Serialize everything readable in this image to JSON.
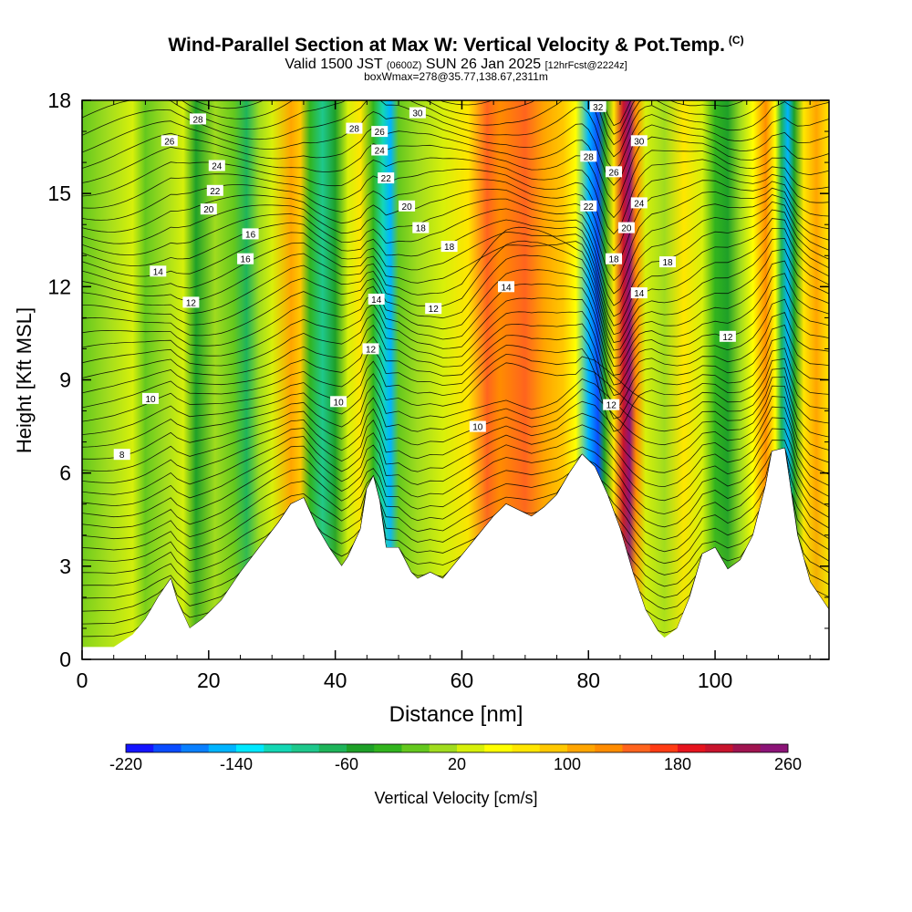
{
  "title": {
    "main": "Wind-Parallel Section at Max W: Vertical Velocity & Pot.Temp.",
    "copyright": "(C)",
    "valid_prefix": "Valid 1500 JST",
    "valid_z": "(0600Z)",
    "valid_date": "SUN 26 Jan 2025",
    "forecast": "[12hrFcst@2224z]",
    "box_info": "boxWmax=278@35.77,138.67,2311m"
  },
  "chart_data": {
    "type": "heatmap",
    "xlabel": "Distance [nm]",
    "ylabel": "Height [Kft MSL]",
    "xlim": [
      0,
      118
    ],
    "ylim": [
      0,
      18
    ],
    "x_ticks": [
      "0",
      "20",
      "40",
      "60",
      "80",
      "100"
    ],
    "y_ticks": [
      "0",
      "3",
      "6",
      "9",
      "12",
      "15",
      "18"
    ],
    "colorbar": {
      "label": "Vertical Velocity [cm/s]",
      "min": -220,
      "max": 260,
      "step": 20,
      "tick_labels": [
        "-220",
        "-140",
        "-60",
        "20",
        "100",
        "180",
        "260"
      ],
      "colors": [
        "#1414ff",
        "#0a4cff",
        "#0a80ff",
        "#00b4ff",
        "#00e8ff",
        "#14d7b4",
        "#1ec88c",
        "#1eb45a",
        "#1ea028",
        "#32b41e",
        "#64c81e",
        "#a0dc1e",
        "#d7f00a",
        "#ffff00",
        "#ffe600",
        "#ffc800",
        "#ffa500",
        "#ff8c00",
        "#ff641e",
        "#ff3c14",
        "#e6141e",
        "#c8142d",
        "#a01450",
        "#8c1478"
      ]
    },
    "terrain_kft": [
      [
        0,
        0.4
      ],
      [
        5,
        0.4
      ],
      [
        8,
        0.8
      ],
      [
        10,
        1.3
      ],
      [
        12,
        2
      ],
      [
        14,
        2.6
      ],
      [
        15,
        1.9
      ],
      [
        17,
        1.0
      ],
      [
        19,
        1.3
      ],
      [
        22,
        1.9
      ],
      [
        25,
        2.8
      ],
      [
        28,
        3.6
      ],
      [
        31,
        4.4
      ],
      [
        33,
        5.0
      ],
      [
        35,
        5.2
      ],
      [
        37,
        4.3
      ],
      [
        39,
        3.6
      ],
      [
        41,
        3.0
      ],
      [
        42,
        3.3
      ],
      [
        44,
        4.2
      ],
      [
        45,
        5.5
      ],
      [
        46,
        5.9
      ],
      [
        47,
        5.1
      ],
      [
        48,
        3.6
      ],
      [
        50,
        3.6
      ],
      [
        52,
        2.8
      ],
      [
        53,
        2.6
      ],
      [
        55,
        2.8
      ],
      [
        57,
        2.6
      ],
      [
        59,
        3.1
      ],
      [
        61,
        3.6
      ],
      [
        63,
        4.1
      ],
      [
        65,
        4.6
      ],
      [
        67,
        5.0
      ],
      [
        69,
        4.8
      ],
      [
        71,
        4.6
      ],
      [
        73,
        4.9
      ],
      [
        75,
        5.3
      ],
      [
        77,
        6.0
      ],
      [
        79,
        6.6
      ],
      [
        81,
        6.2
      ],
      [
        83,
        5.3
      ],
      [
        85,
        4.2
      ],
      [
        87,
        2.8
      ],
      [
        89,
        1.6
      ],
      [
        91,
        0.9
      ],
      [
        92,
        0.7
      ],
      [
        94,
        1.0
      ],
      [
        96,
        2.0
      ],
      [
        98,
        3.4
      ],
      [
        100,
        3.6
      ],
      [
        102,
        2.9
      ],
      [
        104,
        3.2
      ],
      [
        106,
        4.0
      ],
      [
        108,
        5.6
      ],
      [
        109,
        6.7
      ],
      [
        111,
        6.8
      ],
      [
        113,
        4.0
      ],
      [
        115,
        2.5
      ],
      [
        117,
        1.9
      ],
      [
        118,
        1.6
      ]
    ],
    "vv_bands": [
      {
        "x": 0,
        "w": -10
      },
      {
        "x": 4,
        "w": 0
      },
      {
        "x": 8,
        "w": 20
      },
      {
        "x": 10,
        "w": -20
      },
      {
        "x": 13,
        "w": 10
      },
      {
        "x": 16,
        "w": 30
      },
      {
        "x": 18,
        "w": -60
      },
      {
        "x": 21,
        "w": 10
      },
      {
        "x": 24,
        "w": -20
      },
      {
        "x": 26,
        "w": -80
      },
      {
        "x": 28,
        "w": 0
      },
      {
        "x": 30,
        "w": 30
      },
      {
        "x": 33,
        "w": 110
      },
      {
        "x": 34.5,
        "w": 80
      },
      {
        "x": 36,
        "w": -40
      },
      {
        "x": 38,
        "w": -90
      },
      {
        "x": 40,
        "w": -50
      },
      {
        "x": 42,
        "w": 20
      },
      {
        "x": 44,
        "w": 60
      },
      {
        "x": 46,
        "w": -40
      },
      {
        "x": 47.5,
        "w": -120
      },
      {
        "x": 48.7,
        "w": -150
      },
      {
        "x": 50,
        "w": -10
      },
      {
        "x": 53,
        "w": 10
      },
      {
        "x": 57,
        "w": 30
      },
      {
        "x": 61,
        "w": 60
      },
      {
        "x": 64,
        "w": 150
      },
      {
        "x": 66,
        "w": 120
      },
      {
        "x": 70,
        "w": 140
      },
      {
        "x": 73,
        "w": 110
      },
      {
        "x": 76,
        "w": 80
      },
      {
        "x": 78,
        "w": 40
      },
      {
        "x": 80,
        "w": -160
      },
      {
        "x": 81.5,
        "w": -200
      },
      {
        "x": 82.5,
        "w": -60
      },
      {
        "x": 84,
        "w": 60
      },
      {
        "x": 85.5,
        "w": 200
      },
      {
        "x": 86.5,
        "w": 240
      },
      {
        "x": 87.5,
        "w": 120
      },
      {
        "x": 89,
        "w": 30
      },
      {
        "x": 92,
        "w": 10
      },
      {
        "x": 95,
        "w": 60
      },
      {
        "x": 98,
        "w": 20
      },
      {
        "x": 100,
        "w": -40
      },
      {
        "x": 102,
        "w": -60
      },
      {
        "x": 104,
        "w": 10
      },
      {
        "x": 106,
        "w": 50
      },
      {
        "x": 108,
        "w": 130
      },
      {
        "x": 109.5,
        "w": 40
      },
      {
        "x": 110.5,
        "w": -80
      },
      {
        "x": 111.5,
        "w": -150
      },
      {
        "x": 112.5,
        "w": -60
      },
      {
        "x": 114,
        "w": 60
      },
      {
        "x": 116,
        "w": 100
      },
      {
        "x": 118,
        "w": 60
      }
    ],
    "contour_labels": [
      {
        "text": "8",
        "x": 6.3,
        "y": 6.6
      },
      {
        "text": "10",
        "x": 10.8,
        "y": 8.4
      },
      {
        "text": "12",
        "x": 17.2,
        "y": 11.5
      },
      {
        "text": "14",
        "x": 12,
        "y": 12.5
      },
      {
        "text": "16",
        "x": 25.8,
        "y": 12.9
      },
      {
        "text": "16",
        "x": 26.6,
        "y": 13.7
      },
      {
        "text": "20",
        "x": 20,
        "y": 14.5
      },
      {
        "text": "22",
        "x": 21,
        "y": 15.1
      },
      {
        "text": "24",
        "x": 21.3,
        "y": 15.9
      },
      {
        "text": "26",
        "x": 13.8,
        "y": 16.7
      },
      {
        "text": "28",
        "x": 18.3,
        "y": 17.4
      },
      {
        "text": "28",
        "x": 43,
        "y": 17.1
      },
      {
        "text": "26",
        "x": 47,
        "y": 17.0
      },
      {
        "text": "24",
        "x": 47,
        "y": 16.4
      },
      {
        "text": "22",
        "x": 48,
        "y": 15.5
      },
      {
        "text": "30",
        "x": 53,
        "y": 17.6
      },
      {
        "text": "20",
        "x": 51.3,
        "y": 14.6
      },
      {
        "text": "18",
        "x": 53.5,
        "y": 13.9
      },
      {
        "text": "18",
        "x": 58,
        "y": 13.3
      },
      {
        "text": "14",
        "x": 46.5,
        "y": 11.6
      },
      {
        "text": "12",
        "x": 55.5,
        "y": 11.3
      },
      {
        "text": "12",
        "x": 45.6,
        "y": 10.0
      },
      {
        "text": "10",
        "x": 40.5,
        "y": 8.3
      },
      {
        "text": "10",
        "x": 62.5,
        "y": 7.5
      },
      {
        "text": "14",
        "x": 67,
        "y": 12.0
      },
      {
        "text": "32",
        "x": 81.5,
        "y": 17.8
      },
      {
        "text": "30",
        "x": 88,
        "y": 16.7
      },
      {
        "text": "28",
        "x": 80,
        "y": 16.2
      },
      {
        "text": "26",
        "x": 84,
        "y": 15.7
      },
      {
        "text": "24",
        "x": 88,
        "y": 14.7
      },
      {
        "text": "22",
        "x": 80,
        "y": 14.6
      },
      {
        "text": "20",
        "x": 86,
        "y": 13.9
      },
      {
        "text": "18",
        "x": 84,
        "y": 12.9
      },
      {
        "text": "18",
        "x": 92.5,
        "y": 12.8
      },
      {
        "text": "14",
        "x": 88,
        "y": 11.8
      },
      {
        "text": "12",
        "x": 102,
        "y": 10.4
      },
      {
        "text": "12",
        "x": 83.6,
        "y": 8.2
      }
    ]
  }
}
